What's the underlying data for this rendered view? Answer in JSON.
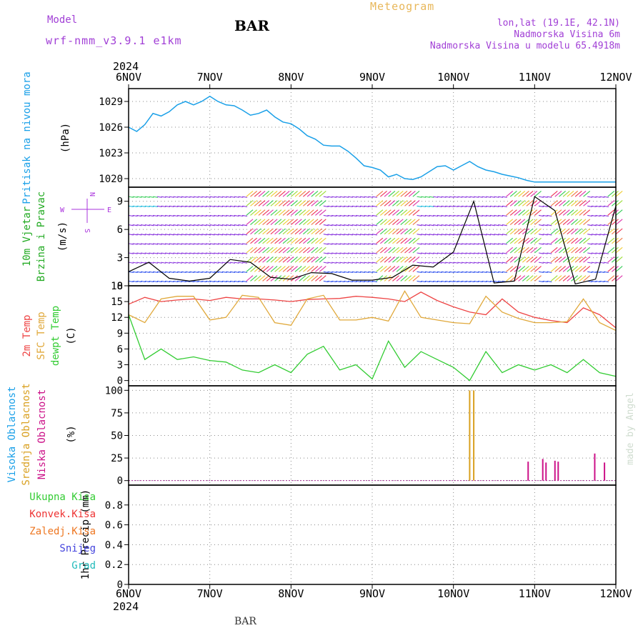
{
  "header": {
    "model_label": "Model",
    "model_name": "wrf-nmm_v3.9.1 e1km",
    "product": "Meteogram",
    "station": "BAR",
    "coords": "lon,lat (19.1E, 42.1N)",
    "altitude": "Nadmorska Visina 6m",
    "model_altitude": "Nadmorska Visina u modelu 65.4918m",
    "footer_station": "BAR",
    "credit": "made by Angel"
  },
  "time_axis": {
    "year_top": "2024",
    "year_bottom": "2024",
    "labels": [
      "6NOV",
      "7NOV",
      "8NOV",
      "9NOV",
      "10NOV",
      "11NOV",
      "12NOV"
    ]
  },
  "compass": {
    "north": "N",
    "south": "S",
    "east": "E",
    "west": "W"
  },
  "colors": {
    "pressure": "#1aa0e8",
    "temp2m": "#ee4444",
    "sfctemp": "#e0a83a",
    "dewpoint": "#33cc33",
    "cloud_high": "#1aa0e8",
    "cloud_mid": "#d9a020",
    "cloud_low": "#cc1188",
    "wind_label": "#22aa22",
    "compass": "#aa33dd"
  },
  "panel_labels": {
    "pressure": [
      "Pritisak na nivou mora",
      "(hPa)"
    ],
    "wind": [
      "10m Vjetar",
      "Brzina i Pravac",
      "(m/s)"
    ],
    "temp": [
      "2m Temp",
      "SFC Temp",
      "dewpt Temp",
      "(C)"
    ],
    "cloud": [
      "Visoka Oblacnost",
      "Srednja Oblacnost",
      "Niska Oblacnost",
      "(%)"
    ],
    "precip_axis": "1hr Precip (mm)",
    "precip_legend": [
      "Ukupna Kisa",
      "Konvek.Kisa",
      "Zaledj.Kisa",
      "Snijeg",
      "Grad"
    ]
  },
  "chart_data": [
    {
      "type": "line",
      "name": "pressure",
      "ylabel": "Pritisak na nivou mora (hPa)",
      "ylim": [
        1019,
        1030.5
      ],
      "yticks": [
        1020,
        1023,
        1026,
        1029
      ],
      "x": [
        0,
        0.1,
        0.2,
        0.3,
        0.4,
        0.5,
        0.6,
        0.7,
        0.8,
        0.9,
        1.0,
        1.1,
        1.2,
        1.3,
        1.4,
        1.5,
        1.6,
        1.7,
        1.8,
        1.9,
        2.0,
        2.1,
        2.2,
        2.3,
        2.4,
        2.5,
        2.6,
        2.7,
        2.8,
        2.9,
        3.0,
        3.1,
        3.2,
        3.3,
        3.4,
        3.5,
        3.6,
        3.7,
        3.8,
        3.9,
        4.0,
        4.1,
        4.2,
        4.3,
        4.4,
        4.5,
        4.6,
        4.7,
        4.8,
        4.9,
        5.0,
        5.1,
        5.2,
        5.3,
        5.4,
        5.5,
        5.6,
        5.7,
        5.8,
        5.9,
        6.0
      ],
      "values": [
        1026.0,
        1025.5,
        1026.3,
        1027.6,
        1027.3,
        1027.8,
        1028.6,
        1029.0,
        1028.6,
        1029.0,
        1029.6,
        1029.0,
        1028.6,
        1028.5,
        1028.0,
        1027.4,
        1027.6,
        1028.0,
        1027.2,
        1026.6,
        1026.4,
        1025.8,
        1025.0,
        1024.6,
        1023.9,
        1023.8,
        1023.8,
        1023.2,
        1022.4,
        1021.5,
        1021.3,
        1021.0,
        1020.2,
        1020.5,
        1020.0,
        1019.9,
        1020.2,
        1020.8,
        1021.4,
        1021.5,
        1021.0,
        1021.5,
        1022.0,
        1021.4,
        1021.0,
        1020.8,
        1020.5,
        1020.3,
        1020.1,
        1019.8,
        1019.6,
        1019.6,
        1019.6,
        1019.6,
        1019.6,
        1019.6,
        1019.6,
        1019.6,
        1019.6,
        1019.6,
        1019.6
      ]
    },
    {
      "type": "scatter",
      "name": "wind",
      "ylabel": "10m Vjetar Brzina i Pravac (m/s)",
      "ylim": [
        0,
        10.5
      ],
      "yticks": [
        0,
        3,
        6,
        9
      ],
      "note": "wind barbs coloured by speed",
      "x": [
        0,
        0.25,
        0.5,
        0.75,
        1.0,
        1.25,
        1.5,
        1.75,
        2.0,
        2.25,
        2.5,
        2.75,
        3.0,
        3.25,
        3.5,
        3.75,
        4.0,
        4.25,
        4.5,
        4.75,
        5.0,
        5.25,
        5.5,
        5.75,
        6.0
      ],
      "values": [
        1.5,
        2.5,
        0.8,
        0.5,
        0.8,
        2.8,
        2.5,
        0.9,
        0.7,
        1.4,
        1.3,
        0.6,
        0.6,
        0.9,
        2.2,
        2.0,
        3.6,
        9.0,
        0.3,
        0.5,
        9.5,
        8.0,
        0.2,
        0.7,
        8.5
      ]
    },
    {
      "type": "line",
      "name": "temperature",
      "ylabel": "(C)",
      "ylim": [
        -1,
        18
      ],
      "yticks": [
        0,
        3,
        6,
        9,
        12,
        15,
        18
      ],
      "x": [
        0,
        0.2,
        0.4,
        0.6,
        0.8,
        1.0,
        1.2,
        1.4,
        1.6,
        1.8,
        2.0,
        2.2,
        2.4,
        2.6,
        2.8,
        3.0,
        3.2,
        3.4,
        3.6,
        3.8,
        4.0,
        4.2,
        4.4,
        4.6,
        4.8,
        5.0,
        5.2,
        5.4,
        5.6,
        5.8,
        6.0
      ],
      "series": [
        {
          "name": "2m Temp",
          "values": [
            14.5,
            15.8,
            15.0,
            15.3,
            15.5,
            15.2,
            15.8,
            15.5,
            15.5,
            15.3,
            15.0,
            15.4,
            15.5,
            15.6,
            16.0,
            15.8,
            15.5,
            15.0,
            16.8,
            15.2,
            14.0,
            13.0,
            12.5,
            15.5,
            13.0,
            12.0,
            11.4,
            11.0,
            13.8,
            12.5,
            10.0
          ]
        },
        {
          "name": "SFC Temp",
          "values": [
            12.5,
            11.0,
            15.5,
            16.0,
            16.0,
            11.5,
            12.0,
            16.2,
            15.8,
            11.0,
            10.5,
            15.5,
            16.2,
            11.5,
            11.5,
            12.0,
            11.3,
            17.0,
            12.0,
            11.5,
            11.0,
            10.8,
            16.0,
            13.0,
            11.8,
            11.0,
            11.0,
            11.2,
            15.5,
            11.0,
            9.5
          ]
        },
        {
          "name": "dewpt Temp",
          "values": [
            12.5,
            4.0,
            6.0,
            4.0,
            4.5,
            3.8,
            3.5,
            2.0,
            1.5,
            3.0,
            1.5,
            5.0,
            6.5,
            2.0,
            3.0,
            0.3,
            7.5,
            2.5,
            5.5,
            4.0,
            2.5,
            0.0,
            5.5,
            1.5,
            3.0,
            2.0,
            3.0,
            1.5,
            4.0,
            1.5,
            0.8
          ]
        }
      ]
    },
    {
      "type": "bar",
      "name": "cloud",
      "ylabel": "(%)",
      "ylim": [
        -5,
        105
      ],
      "yticks": [
        0,
        25,
        50,
        75,
        100
      ],
      "series": [
        {
          "name": "Visoka Oblacnost",
          "x": [],
          "values": []
        },
        {
          "name": "Srednja Oblacnost",
          "x": [
            4.2,
            4.25
          ],
          "values": [
            100,
            100
          ]
        },
        {
          "name": "Niska Oblacnost",
          "x": [
            4.92,
            5.1,
            5.14,
            5.25,
            5.29,
            5.74,
            5.86
          ],
          "values": [
            21,
            24,
            20,
            22,
            21,
            30,
            20
          ]
        }
      ]
    },
    {
      "type": "bar",
      "name": "precip",
      "ylabel": "1hr Precip (mm)",
      "ylim": [
        0,
        1.0
      ],
      "yticks": [
        0,
        0.2,
        0.4,
        0.6,
        0.8
      ],
      "x": [],
      "values": []
    }
  ]
}
